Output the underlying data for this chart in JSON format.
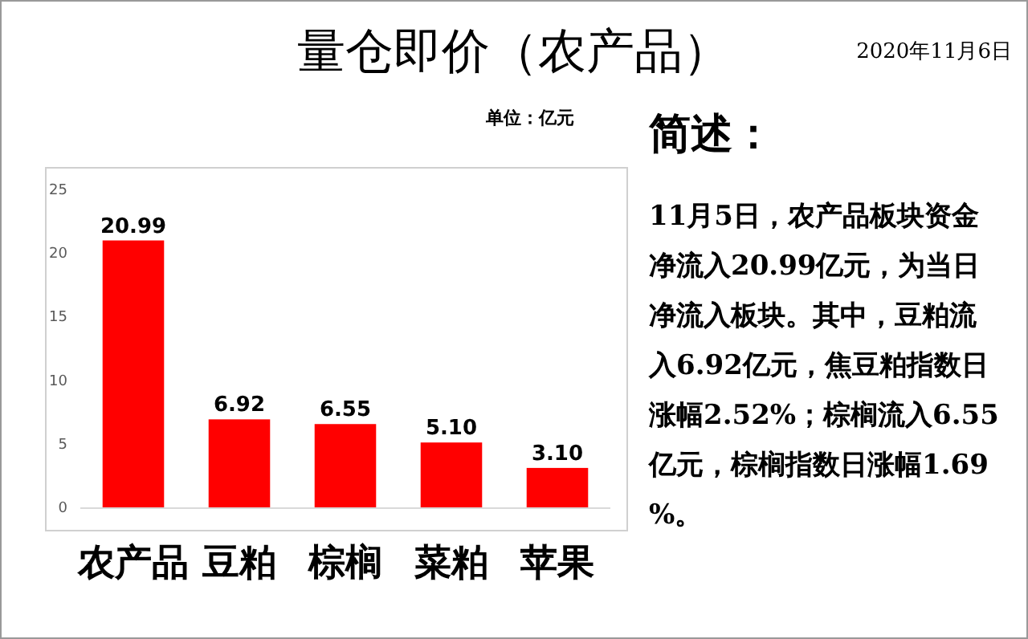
{
  "chart_data": {
    "type": "bar",
    "title": "量仓即价（农产品）",
    "categories": [
      "农产品",
      "豆粕",
      "棕榈",
      "菜粕",
      "苹果"
    ],
    "values": [
      20.99,
      6.92,
      6.55,
      5.1,
      3.1
    ],
    "value_labels": [
      "20.99",
      "6.92",
      "6.55",
      "5.10",
      "3.10"
    ],
    "color": "#ff0000",
    "ylim": [
      0,
      25
    ],
    "yticks": [
      0,
      5,
      10,
      15,
      20,
      25
    ],
    "grid": false,
    "annotations": [
      "2020年11月6日",
      "单位：亿元",
      "简述：",
      "11月5日，农产品板块资金净流入20.99亿元，为当日净流入板块。其中，豆粕流入6.92亿元，焦豆粕指数日涨幅2.52%；棕榈流入6.55亿元，棕榈指数日涨幅1.69%。"
    ]
  }
}
